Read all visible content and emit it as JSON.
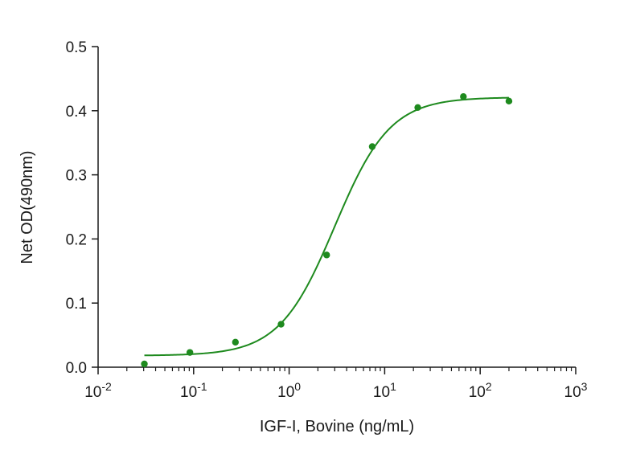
{
  "colors": {
    "series": "#1e8a1e",
    "axis": "#1a1a1a",
    "background": "#ffffff"
  },
  "chart_data": {
    "type": "scatter",
    "title": "",
    "xlabel": "IGF-I, Bovine (ng/mL)",
    "ylabel": "Net OD(490nm)",
    "xscale": "log",
    "xlim": [
      0.01,
      1000
    ],
    "ylim": [
      0.0,
      0.5
    ],
    "grid": false,
    "legend": "none",
    "x_ticks": [
      {
        "value": 0.01,
        "base": "10",
        "exp": "-2"
      },
      {
        "value": 0.1,
        "base": "10",
        "exp": "-1"
      },
      {
        "value": 1,
        "base": "10",
        "exp": "0"
      },
      {
        "value": 10,
        "base": "10",
        "exp": "1"
      },
      {
        "value": 100,
        "base": "10",
        "exp": "2"
      },
      {
        "value": 1000,
        "base": "10",
        "exp": "3"
      }
    ],
    "y_ticks": [
      {
        "value": 0.0,
        "label": "0.0"
      },
      {
        "value": 0.1,
        "label": "0.1"
      },
      {
        "value": 0.2,
        "label": "0.2"
      },
      {
        "value": 0.3,
        "label": "0.3"
      },
      {
        "value": 0.4,
        "label": "0.4"
      },
      {
        "value": 0.5,
        "label": "0.5"
      }
    ],
    "series": [
      {
        "x": [
          0.0305,
          0.0914,
          0.274,
          0.823,
          2.47,
          7.41,
          22.2,
          66.7,
          200
        ],
        "y": [
          0.005,
          0.023,
          0.039,
          0.067,
          0.175,
          0.344,
          0.405,
          0.422,
          0.415
        ],
        "marker": "circle",
        "fit": {
          "model": "4PL",
          "bottom": 0.018,
          "top": 0.421,
          "ec50": 3.0,
          "hill": 1.5,
          "x_range": [
            0.0305,
            200
          ]
        }
      }
    ]
  }
}
